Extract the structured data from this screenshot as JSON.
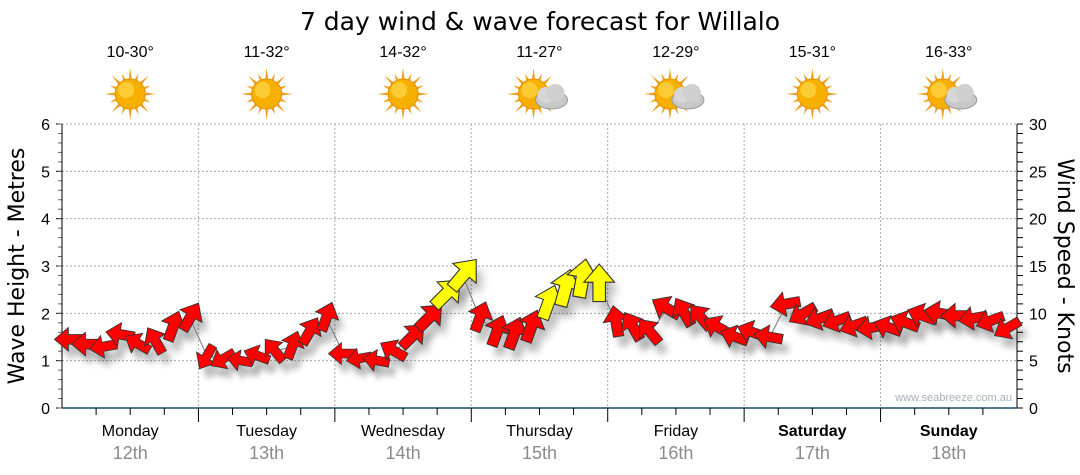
{
  "chart_data": {
    "type": "scatter",
    "title": "7 day wind & wave forecast for Willalo",
    "ylabel": "Wave Height - Metres",
    "y2label": "Wind Speed - Knots",
    "ylim": [
      0,
      6
    ],
    "y2lim": [
      0,
      30
    ],
    "yticks": [
      "0",
      "1",
      "2",
      "3",
      "4",
      "5",
      "6"
    ],
    "y2ticks": [
      "0",
      "5",
      "10",
      "15",
      "20",
      "25",
      "30"
    ],
    "grid": true,
    "watermark": "www.seabreeze.com.au",
    "days": [
      {
        "name": "Monday",
        "date": "12th",
        "temp": "10-30°",
        "weather": "sunny",
        "bold": false
      },
      {
        "name": "Tuesday",
        "date": "13th",
        "temp": "11-32°",
        "weather": "sunny",
        "bold": false
      },
      {
        "name": "Wednesday",
        "date": "14th",
        "temp": "14-32°",
        "weather": "sunny",
        "bold": false
      },
      {
        "name": "Thursday",
        "date": "15th",
        "temp": "11-27°",
        "weather": "partly-cloudy",
        "bold": false
      },
      {
        "name": "Friday",
        "date": "16th",
        "temp": "12-29°",
        "weather": "partly-cloudy",
        "bold": false
      },
      {
        "name": "Saturday",
        "date": "17th",
        "temp": "15-31°",
        "weather": "sunny",
        "bold": true
      },
      {
        "name": "Sunday",
        "date": "18th",
        "temp": "16-33°",
        "weather": "partly-cloudy",
        "bold": true
      }
    ],
    "interval_hours": 3,
    "wave_height_m": [
      1.45,
      1.35,
      1.3,
      1.55,
      1.35,
      1.4,
      1.7,
      1.9,
      1.1,
      1.05,
      1.0,
      1.1,
      1.2,
      1.3,
      1.6,
      1.9,
      1.15,
      1.05,
      1.0,
      1.2,
      1.5,
      1.9,
      2.4,
      2.8,
      1.9,
      1.6,
      1.55,
      1.7,
      2.2,
      2.5,
      2.7,
      2.6,
      1.8,
      1.7,
      1.6,
      2.1,
      2.0,
      1.9,
      1.7,
      1.5,
      1.6,
      1.5,
      2.2,
      2.0,
      1.9,
      1.85,
      1.75,
      1.7,
      1.7,
      1.8,
      1.95,
      2.0,
      1.95,
      1.9,
      1.85,
      1.7
    ],
    "wind_arrow_deg": [
      -90,
      -90,
      -100,
      -80,
      -60,
      -30,
      20,
      30,
      -150,
      -120,
      -80,
      -70,
      -40,
      20,
      30,
      20,
      -90,
      -100,
      -80,
      -60,
      45,
      45,
      45,
      40,
      20,
      20,
      20,
      20,
      20,
      15,
      10,
      0,
      -10,
      -30,
      -40,
      -60,
      -30,
      -40,
      -60,
      -70,
      -70,
      -80,
      -100,
      -120,
      -110,
      -110,
      -110,
      -100,
      -70,
      -70,
      -70,
      -80,
      -90,
      -100,
      -110,
      -120
    ],
    "wind_speed_kn": [
      8,
      8,
      7,
      8,
      7,
      8,
      10,
      10,
      6,
      6,
      5,
      6,
      7,
      8,
      9,
      9,
      6,
      5,
      6,
      8,
      10,
      12,
      15,
      16,
      10,
      11,
      12,
      12,
      14,
      16,
      17,
      16,
      10,
      10,
      9,
      10,
      10,
      9,
      9,
      8,
      8,
      8,
      9,
      9,
      9,
      8,
      8,
      8,
      8,
      9,
      9,
      9,
      9,
      8,
      8,
      8
    ],
    "colors": {
      "calm": "#ff0000",
      "strong": "#ffff00",
      "strong_threshold_kn": 14
    }
  }
}
